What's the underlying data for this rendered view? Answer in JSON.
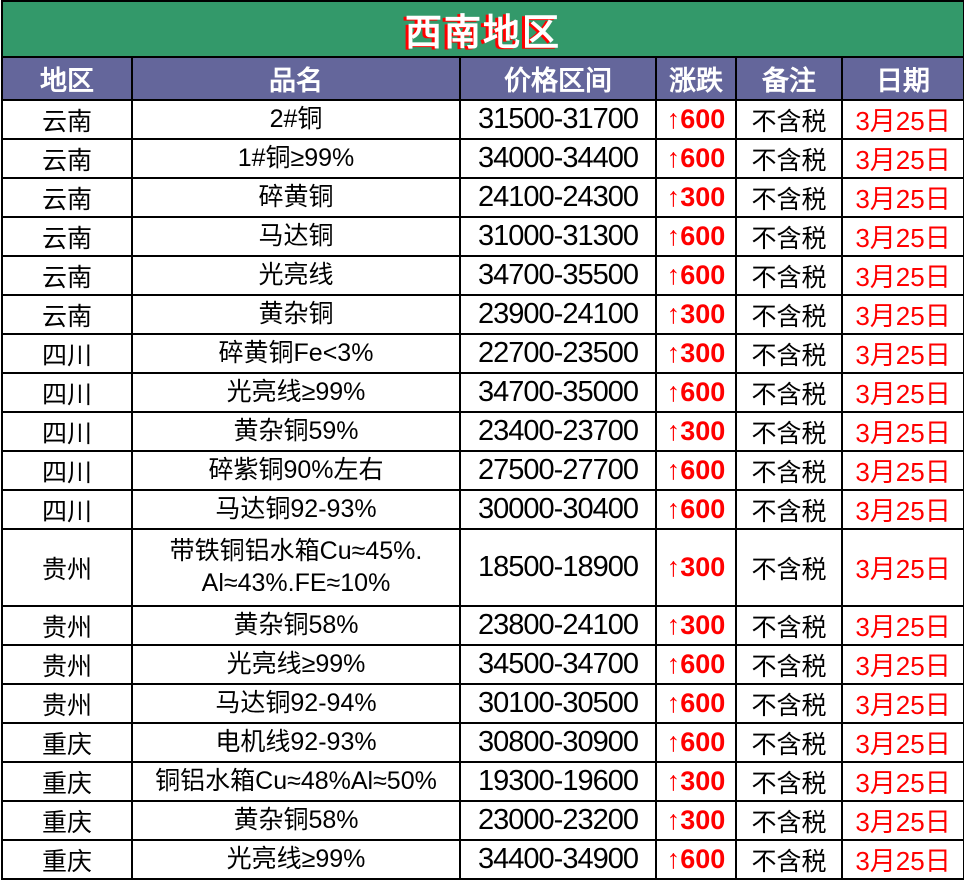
{
  "title": "西南地区",
  "columns": [
    "地区",
    "品名",
    "价格区间",
    "涨跌",
    "备注",
    "日期"
  ],
  "rows": [
    {
      "region": "云南",
      "product": "2#铜",
      "price": "31500-31700",
      "change": "↑600",
      "note": "不含税",
      "date": "3月25日"
    },
    {
      "region": "云南",
      "product": "1#铜≥99%",
      "price": "34000-34400",
      "change": "↑600",
      "note": "不含税",
      "date": "3月25日"
    },
    {
      "region": "云南",
      "product": "碎黄铜",
      "price": "24100-24300",
      "change": "↑300",
      "note": "不含税",
      "date": "3月25日"
    },
    {
      "region": "云南",
      "product": "马达铜",
      "price": "31000-31300",
      "change": "↑600",
      "note": "不含税",
      "date": "3月25日"
    },
    {
      "region": "云南",
      "product": "光亮线",
      "price": "34700-35500",
      "change": "↑600",
      "note": "不含税",
      "date": "3月25日"
    },
    {
      "region": "云南",
      "product": "黄杂铜",
      "price": "23900-24100",
      "change": "↑300",
      "note": "不含税",
      "date": "3月25日"
    },
    {
      "region": "四川",
      "product": "碎黄铜Fe<3%",
      "price": "22700-23500",
      "change": "↑300",
      "note": "不含税",
      "date": "3月25日"
    },
    {
      "region": "四川",
      "product": "光亮线≥99%",
      "price": "34700-35000",
      "change": "↑600",
      "note": "不含税",
      "date": "3月25日"
    },
    {
      "region": "四川",
      "product": "黄杂铜59%",
      "price": "23400-23700",
      "change": "↑300",
      "note": "不含税",
      "date": "3月25日"
    },
    {
      "region": "四川",
      "product": "碎紫铜90%左右",
      "price": "27500-27700",
      "change": "↑600",
      "note": "不含税",
      "date": "3月25日"
    },
    {
      "region": "四川",
      "product": "马达铜92-93%",
      "price": "30000-30400",
      "change": "↑600",
      "note": "不含税",
      "date": "3月25日"
    },
    {
      "region": "贵州",
      "product": "带铁铜铝水箱Cu≈45%.\nAl≈43%.FE≈10%",
      "price": "18500-18900",
      "change": "↑300",
      "note": "不含税",
      "date": "3月25日",
      "tall": true
    },
    {
      "region": "贵州",
      "product": "黄杂铜58%",
      "price": "23800-24100",
      "change": "↑300",
      "note": "不含税",
      "date": "3月25日"
    },
    {
      "region": "贵州",
      "product": "光亮线≥99%",
      "price": "34500-34700",
      "change": "↑600",
      "note": "不含税",
      "date": "3月25日"
    },
    {
      "region": "贵州",
      "product": "马达铜92-94%",
      "price": "30100-30500",
      "change": "↑600",
      "note": "不含税",
      "date": "3月25日"
    },
    {
      "region": "重庆",
      "product": "电机线92-93%",
      "price": "30800-30900",
      "change": "↑600",
      "note": "不含税",
      "date": "3月25日"
    },
    {
      "region": "重庆",
      "product": "铜铝水箱Cu≈48%Al≈50%",
      "price": "19300-19600",
      "change": "↑300",
      "note": "不含税",
      "date": "3月25日"
    },
    {
      "region": "重庆",
      "product": "黄杂铜58%",
      "price": "23000-23200",
      "change": "↑300",
      "note": "不含税",
      "date": "3月25日"
    },
    {
      "region": "重庆",
      "product": "光亮线≥99%",
      "price": "34400-34900",
      "change": "↑600",
      "note": "不含税",
      "date": "3月25日"
    }
  ],
  "colors": {
    "title_bg": "#33996a",
    "title_text": "#ffffff",
    "header_bg": "#64669b",
    "header_text": "#ffffff",
    "accent_red": "#ff0000",
    "border": "#000000"
  }
}
